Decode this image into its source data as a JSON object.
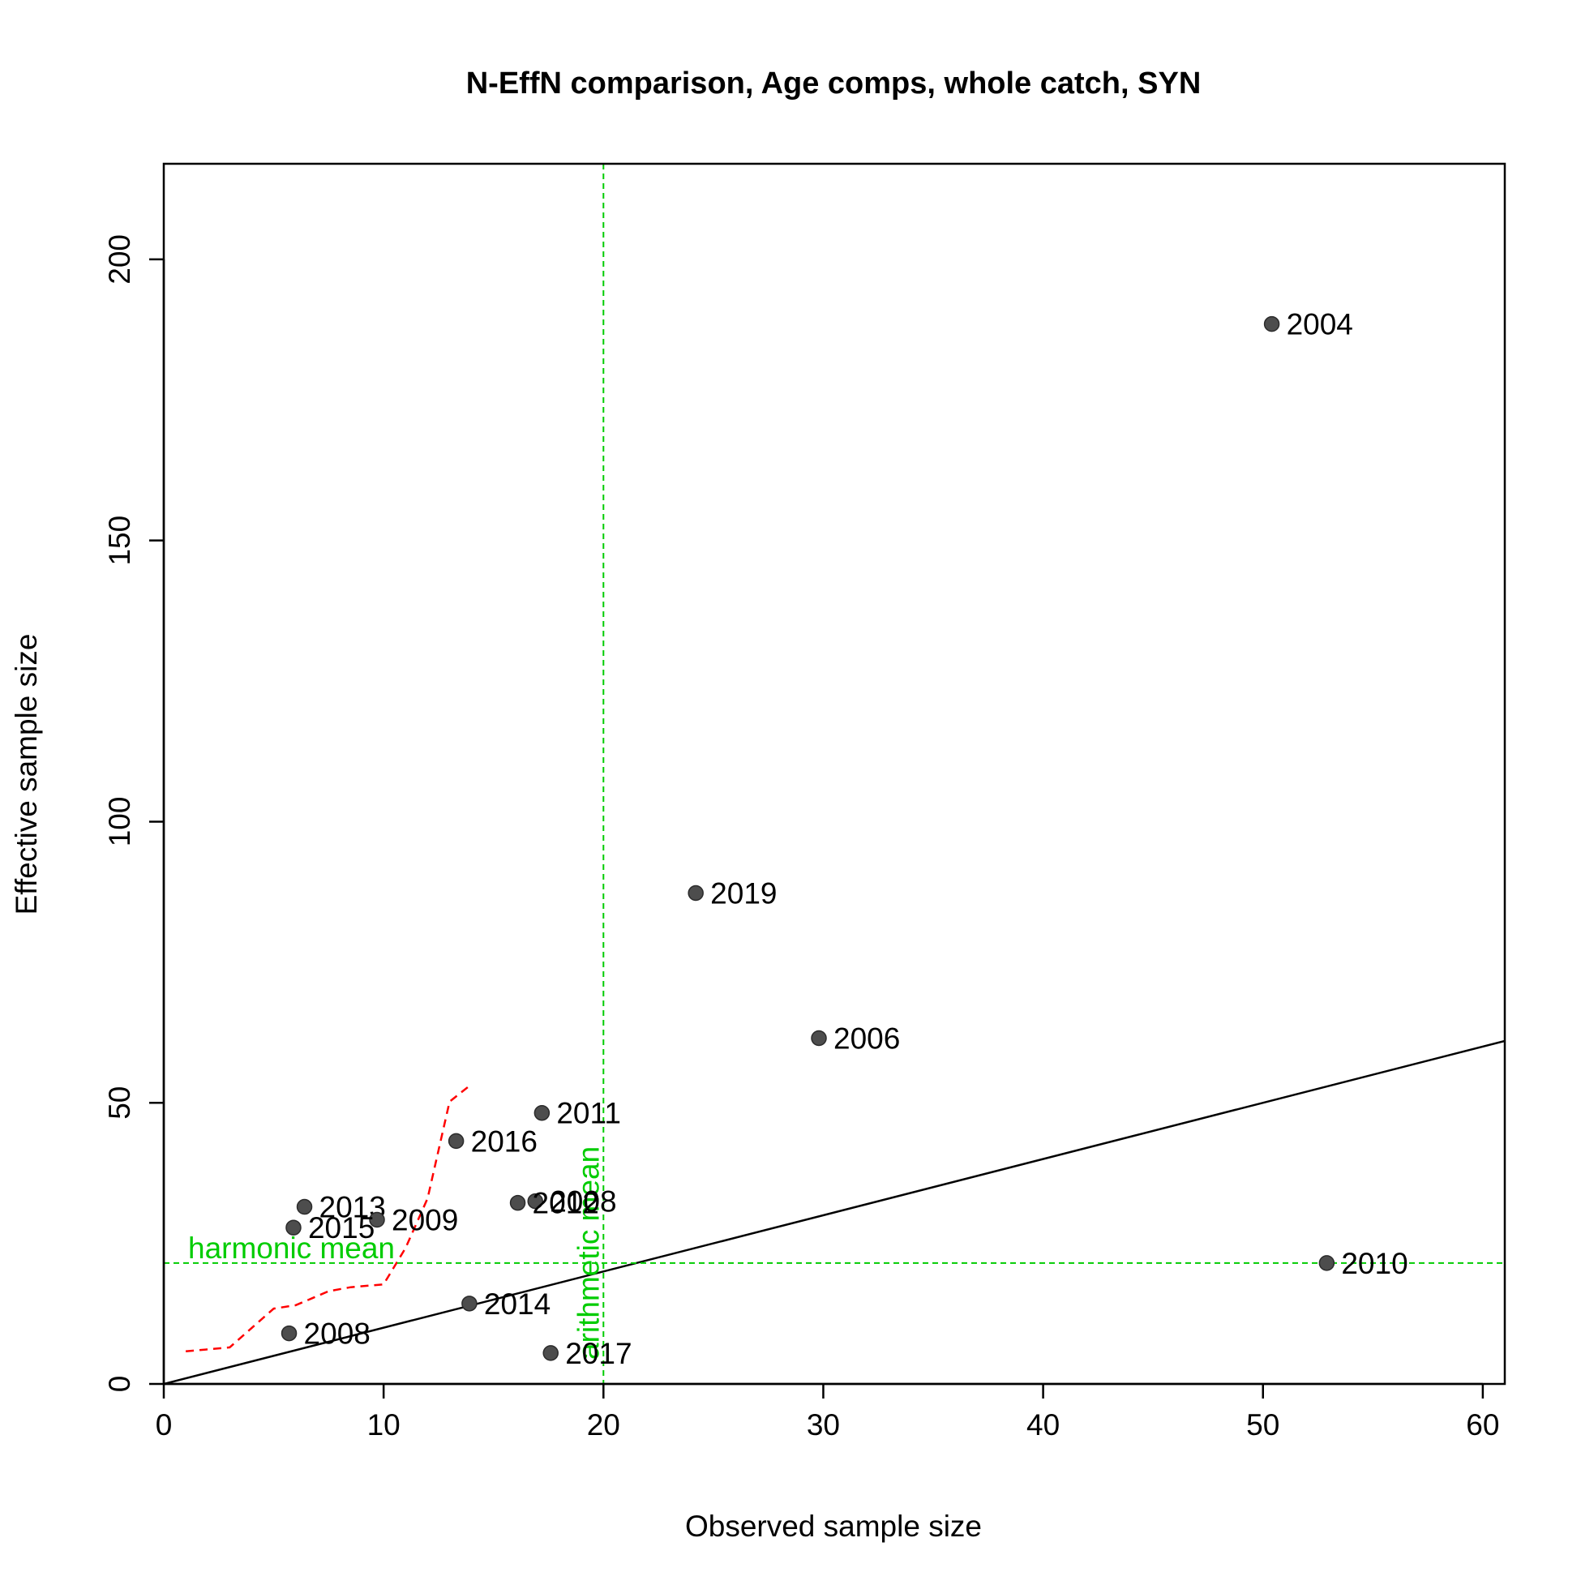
{
  "chart_data": {
    "type": "scatter",
    "title": "N-EffN comparison, Age comps, whole catch, SYN",
    "xlabel": "Observed sample size",
    "ylabel": "Effective sample size",
    "xlim": [
      0,
      61
    ],
    "ylim": [
      0,
      217
    ],
    "x_ticks": [
      0,
      10,
      20,
      30,
      40,
      50,
      60
    ],
    "y_ticks": [
      0,
      50,
      100,
      150,
      200
    ],
    "grid": false,
    "colors": {
      "points": "#4d4d4d",
      "reference_lines": "#00cc00",
      "smoother": "#ff0000",
      "identity_line": "#000000"
    },
    "points": [
      {
        "year": "2004",
        "x": 50.4,
        "y": 188.5
      },
      {
        "year": "2019",
        "x": 24.2,
        "y": 87.3
      },
      {
        "year": "2006",
        "x": 29.8,
        "y": 61.5
      },
      {
        "year": "2011",
        "x": 17.2,
        "y": 48.2
      },
      {
        "year": "2016",
        "x": 13.3,
        "y": 43.2
      },
      {
        "year": "2008",
        "x": 16.9,
        "y": 32.5
      },
      {
        "year": "2012",
        "x": 16.1,
        "y": 32.2
      },
      {
        "year": "2013",
        "x": 6.4,
        "y": 31.5
      },
      {
        "year": "2009",
        "x": 9.7,
        "y": 29.2
      },
      {
        "year": "2015",
        "x": 5.9,
        "y": 27.8
      },
      {
        "year": "2010",
        "x": 52.9,
        "y": 21.5
      },
      {
        "year": "2014",
        "x": 13.9,
        "y": 14.3
      },
      {
        "year": "2008",
        "x": 5.7,
        "y": 9.0
      },
      {
        "year": "2017",
        "x": 17.6,
        "y": 5.5
      }
    ],
    "identity_line": {
      "slope": 1,
      "intercept": 0
    },
    "harmonic_mean": {
      "value": 21.5,
      "label": "harmonic mean"
    },
    "arithmetic_mean": {
      "value": 20.0,
      "label": "arithmetic mean"
    },
    "smoother": {
      "x": [
        1.0,
        3.0,
        5.0,
        6.0,
        7.5,
        8.5,
        10.0,
        11.0,
        12.0,
        13.0,
        14.0
      ],
      "y": [
        5.8,
        6.5,
        13.4,
        14.0,
        16.5,
        17.2,
        17.7,
        24.2,
        33.0,
        50.2,
        53.3
      ]
    }
  }
}
